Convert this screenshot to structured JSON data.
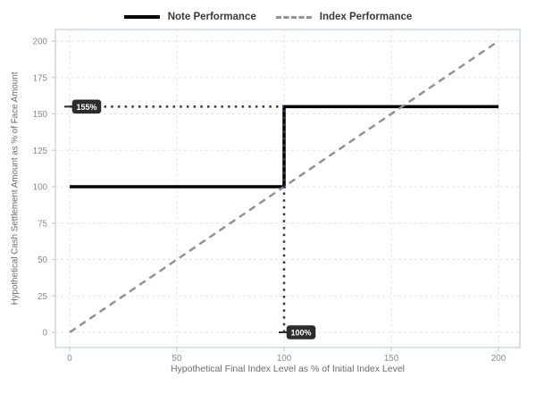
{
  "chart_data": {
    "type": "line",
    "title": "",
    "xlabel": "Hypothetical Final Index Level as % of Initial Index Level",
    "ylabel": "Hypothetical Cash Settlement Amount as % of Face Amount",
    "xlim": [
      0,
      200
    ],
    "ylim": [
      0,
      200
    ],
    "xticks": [
      0,
      50,
      100,
      150,
      200
    ],
    "yticks": [
      0,
      25,
      50,
      75,
      100,
      125,
      150,
      175,
      200
    ],
    "grid": true,
    "legend_position": "top",
    "series": [
      {
        "name": "Note Performance",
        "style": "solid",
        "color": "#000000",
        "points": [
          [
            0,
            100
          ],
          [
            100,
            100
          ],
          [
            100,
            155
          ],
          [
            200,
            155
          ]
        ]
      },
      {
        "name": "Index Performance",
        "style": "dashed",
        "color": "#8f8f97",
        "points": [
          [
            0,
            0
          ],
          [
            200,
            200
          ]
        ]
      }
    ],
    "guides": [
      {
        "style": "dotted",
        "color": "#2a3550",
        "points": [
          [
            0,
            155
          ],
          [
            100,
            155
          ]
        ]
      },
      {
        "style": "dotted",
        "color": "#2a3550",
        "points": [
          [
            100,
            0
          ],
          [
            100,
            155
          ]
        ]
      }
    ],
    "annotations": [
      {
        "label": "155%",
        "x": 0,
        "y": 155,
        "side": "right",
        "bg": "#2d2d2d",
        "fg": "#ffffff"
      },
      {
        "label": "100%",
        "x": 100,
        "y": 0,
        "side": "right",
        "bg": "#2d2d2d",
        "fg": "#ffffff"
      }
    ]
  }
}
